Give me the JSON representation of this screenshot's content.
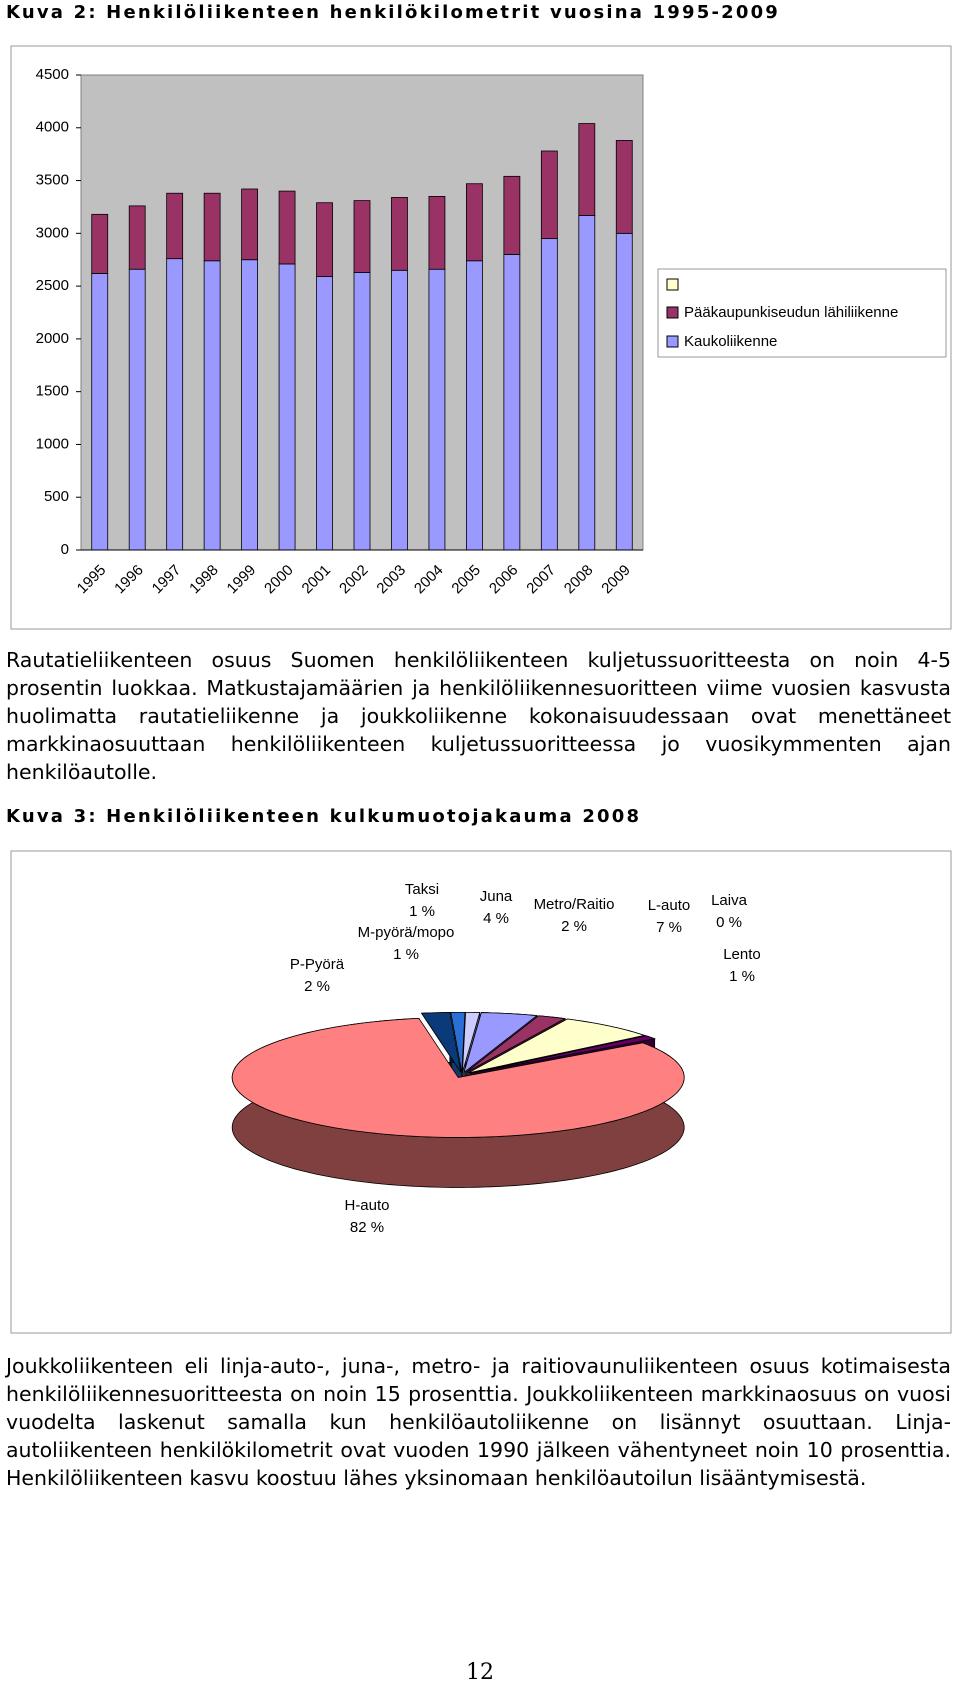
{
  "figure2_title": "Kuva 2: Henkilöliikenteen henkilökilometrit vuosina 1995-2009",
  "chart_data": [
    {
      "type": "bar",
      "stacked": true,
      "categories": [
        "1995",
        "1996",
        "1997",
        "1998",
        "1999",
        "2000",
        "2001",
        "2002",
        "2003",
        "2004",
        "2005",
        "2006",
        "2007",
        "2008",
        "2009"
      ],
      "series": [
        {
          "name": "Kaukoliikenne",
          "color": "#9999ff",
          "values": [
            2620,
            2660,
            2760,
            2740,
            2750,
            2710,
            2590,
            2630,
            2650,
            2660,
            2740,
            2800,
            2950,
            3170,
            3000
          ]
        },
        {
          "name": "Pääkaupunkiseudun lähiliikenne",
          "color": "#993366",
          "values": [
            560,
            600,
            620,
            640,
            670,
            690,
            700,
            680,
            690,
            690,
            730,
            740,
            830,
            870,
            880
          ]
        }
      ],
      "ylim": [
        0,
        4500
      ],
      "yticks": [
        0,
        500,
        1000,
        1500,
        2000,
        2500,
        3000,
        3500,
        4000,
        4500
      ],
      "grid": false,
      "legend": "right",
      "plot_background": "#c0c0c0"
    },
    {
      "type": "pie",
      "categories": [
        "P-Pyörä",
        "Taksi",
        "M-pyörä/mopo",
        "Juna",
        "Metro/Raitio",
        "L-auto",
        "Laiva",
        "Lento",
        "H-auto"
      ],
      "values": [
        2,
        1,
        1,
        4,
        2,
        7,
        0,
        1,
        82
      ],
      "value_labels": [
        "2 %",
        "1 %",
        "1 %",
        "4 %",
        "2 %",
        "7 %",
        "0 %",
        "1 %",
        "82 %"
      ],
      "colors": [
        "#0a3a7a",
        "#2a6fd6",
        "#ccccff",
        "#9999ff",
        "#993366",
        "#ffffcc",
        "#ccffff",
        "#660066",
        "#ff8080"
      ]
    }
  ],
  "paragraph1": "Rautatieliikenteen osuus Suomen henkilöliikenteen kuljetussuoritteesta on noin 4-5 prosentin luokkaa. Matkustajamäärien ja henkilöliikennesuoritteen viime vuosien kasvusta huolimatta rautatieliikenne ja joukkoliikenne kokonaisuudessaan ovat menettäneet markkinaosuuttaan henkilöliikenteen kuljetussuoritteessa jo vuosikymmenten ajan henkilöautolle.",
  "figure3_title": "Kuva 3: Henkilöliikenteen kulkumuotojakauma 2008",
  "paragraph2": "Joukkoliikenteen eli linja-auto-, juna-, metro- ja raitiovaunuliikenteen osuus kotimaisesta henkilöliikennesuoritteesta on noin 15 prosenttia. Joukkoliikenteen markkinaosuus on vuosi vuodelta laskenut samalla kun henkilöautoliikenne on lisännyt osuuttaan. Linja-autoliikenteen henkilökilometrit ovat vuoden 1990 jälkeen vähentyneet noin 10 prosenttia. Henkilöliikenteen kasvu koostuu lähes yksinomaan henkilöautoilun lisääntymisestä.",
  "page_number": "12"
}
